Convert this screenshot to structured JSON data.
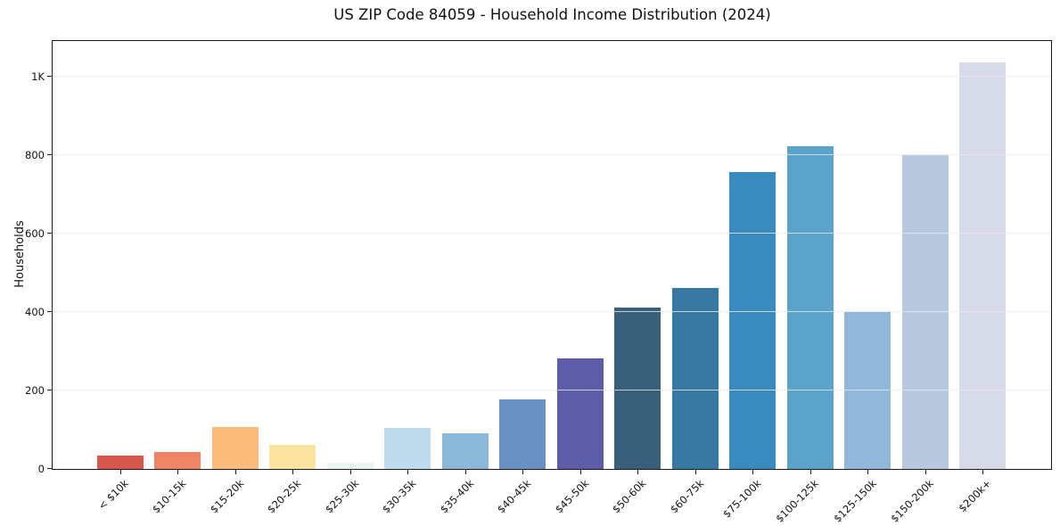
{
  "chart_data": {
    "type": "bar",
    "title": "US ZIP Code 84059 - Household Income Distribution (2024)",
    "xlabel": "",
    "ylabel": "Households",
    "categories": [
      "< $10k",
      "$10-15k",
      "$15-20k",
      "$20-25k",
      "$25-30k",
      "$30-35k",
      "$35-40k",
      "$40-45k",
      "$45-50k",
      "$50-60k",
      "$60-75k",
      "$75-100k",
      "$100-125k",
      "$125-150k",
      "$150-200k",
      "$200k+"
    ],
    "values": [
      35,
      43,
      106,
      61,
      16,
      105,
      91,
      178,
      283,
      412,
      462,
      757,
      823,
      400,
      800,
      1037
    ],
    "bar_colors": [
      "#d8574d",
      "#ef8566",
      "#fcbd7c",
      "#fbe3a2",
      "#e9f5f1",
      "#bedcec",
      "#8cb9d9",
      "#6992c2",
      "#5c5ca8",
      "#38607b",
      "#3879a1",
      "#398abf",
      "#5ba3c9",
      "#91b7d9",
      "#b8c9df",
      "#d7dae8"
    ],
    "yticks": [
      {
        "value": 0,
        "label": "0"
      },
      {
        "value": 200,
        "label": "200"
      },
      {
        "value": 400,
        "label": "400"
      },
      {
        "value": 600,
        "label": "600"
      },
      {
        "value": 800,
        "label": "800"
      },
      {
        "value": 1000,
        "label": "1K"
      }
    ],
    "ylim": [
      0,
      1090
    ],
    "grid": "horizontal",
    "grid_color": "#e9e9f2",
    "legend": "none",
    "bar_orientation": "vertical",
    "tick_label_rotation_deg": 45
  }
}
